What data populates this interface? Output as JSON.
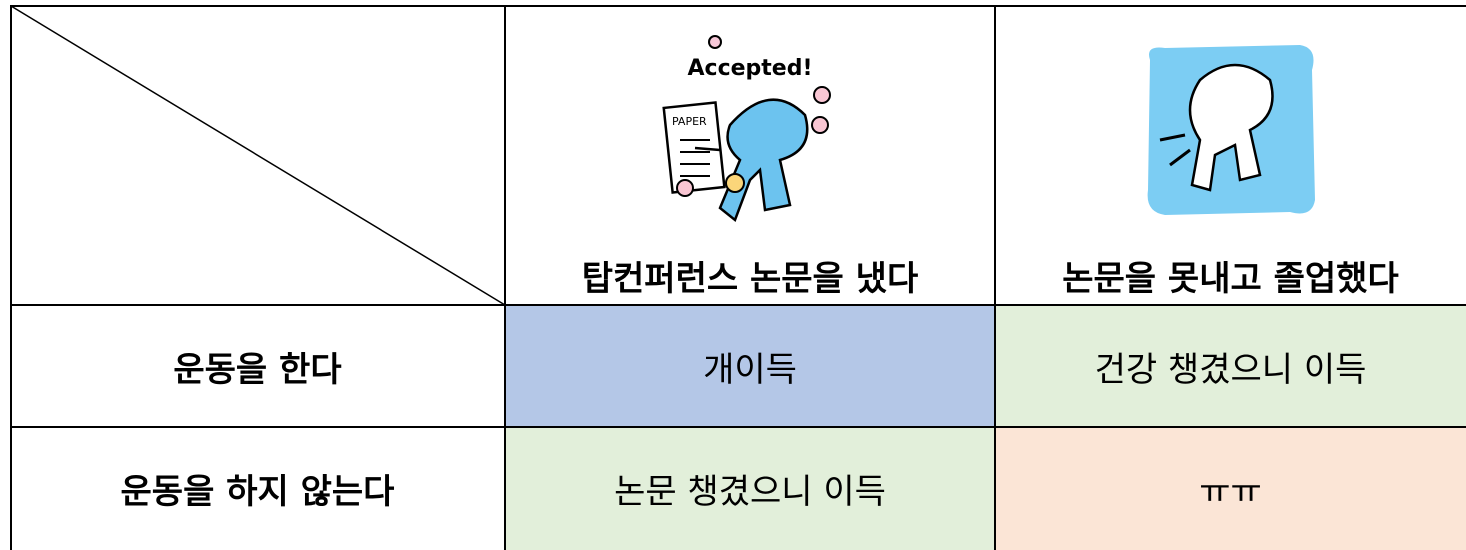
{
  "table": {
    "header": [
      "탑컨퍼런스 논문을 냈다",
      "논문을 못내고 졸업했다"
    ],
    "illustration_texts": {
      "accepted": "Accepted!",
      "paper": "PAPER"
    },
    "rows": [
      [
        "운동을 한다",
        "개이득",
        "건강 챙겼으니 이득"
      ],
      [
        "운동을 하지 않는다",
        "논문 챙겼으니 이득",
        "ㅠㅠ"
      ]
    ]
  }
}
